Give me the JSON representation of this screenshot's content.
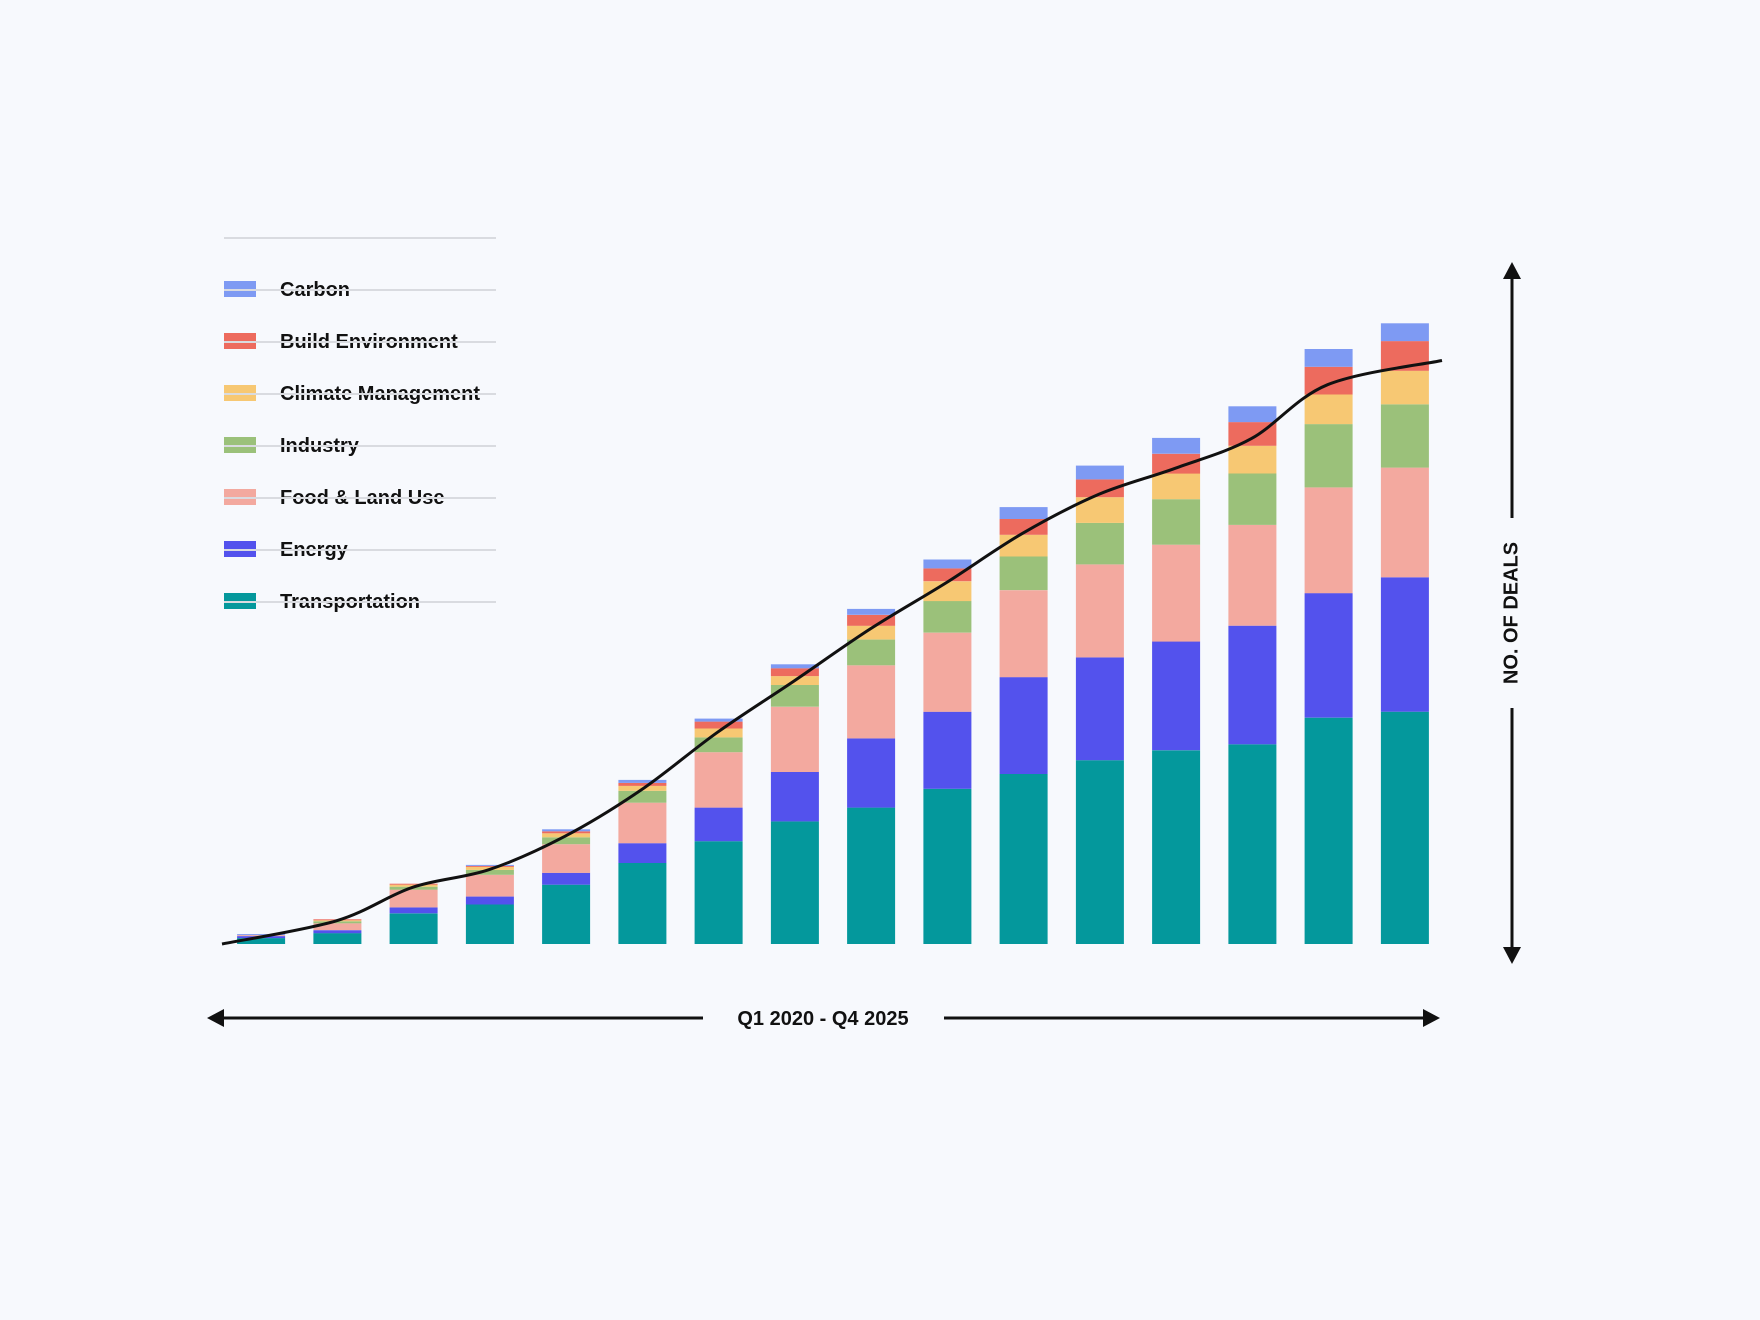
{
  "chart_data": {
    "type": "bar",
    "stacked": true,
    "categories": [
      "",
      "",
      "",
      "",
      "",
      "",
      "",
      "",
      "",
      "",
      "",
      "",
      "",
      "",
      "",
      ""
    ],
    "series": [
      {
        "name": "Transportation",
        "color": "#04989c",
        "values": [
          6,
          11,
          31,
          40,
          60,
          82,
          104,
          124,
          138,
          157,
          172,
          186,
          196,
          202,
          229,
          235
        ]
      },
      {
        "name": "Energy",
        "color": "#5352ed",
        "values": [
          2,
          3,
          6,
          8,
          12,
          20,
          34,
          50,
          70,
          78,
          98,
          104,
          110,
          120,
          126,
          136
        ]
      },
      {
        "name": "Food & Land Use",
        "color": "#f3a99f",
        "values": [
          1,
          7,
          18,
          22,
          29,
          41,
          56,
          66,
          74,
          80,
          88,
          94,
          98,
          102,
          107,
          111
        ]
      },
      {
        "name": "Industry",
        "color": "#9bc17a",
        "values": [
          0,
          2,
          3,
          5,
          7,
          12,
          15,
          22,
          26,
          32,
          34,
          42,
          46,
          52,
          64,
          64
        ]
      },
      {
        "name": "Climate Management",
        "color": "#f7c873",
        "values": [
          0,
          1,
          2,
          3,
          4,
          5,
          9,
          9,
          14,
          20,
          22,
          26,
          26,
          28,
          30,
          34
        ]
      },
      {
        "name": "Build Environment",
        "color": "#ed6b5e",
        "values": [
          0,
          1,
          1,
          1,
          2,
          3,
          7,
          8,
          11,
          13,
          16,
          18,
          20,
          24,
          28,
          30
        ]
      },
      {
        "name": "Carbon",
        "color": "#7e9af3",
        "values": [
          1,
          0,
          0,
          1,
          2,
          3,
          3,
          4,
          6,
          9,
          12,
          14,
          16,
          16,
          18,
          18
        ]
      }
    ],
    "trend_line": {
      "color": "#111111"
    },
    "legend_order": [
      "Carbon",
      "Build Environment",
      "Climate Management",
      "Industry",
      "Food & Land Use",
      "Energy",
      "Transportation"
    ],
    "legend_position": "top-left",
    "xlabel": "Q1 2020 - Q4 2025",
    "ylabel": "NO. OF DEALS",
    "ylim": [
      0,
      690
    ],
    "grid": false
  }
}
